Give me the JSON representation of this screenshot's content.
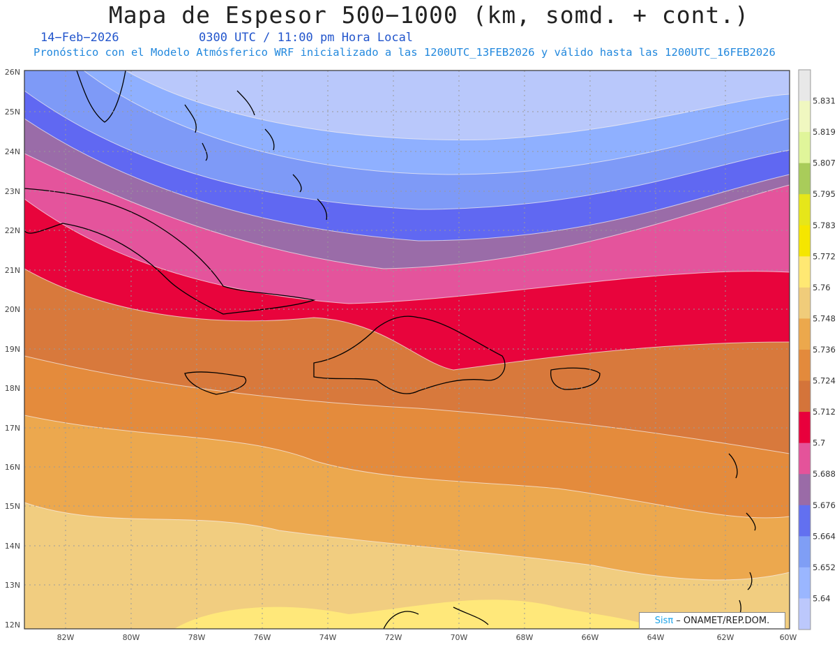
{
  "header": {
    "title": "Mapa de Espesor 500−1000 (km, somd. + cont.)",
    "date": "14−Feb−2026",
    "time": "0300 UTC / 11:00 pm Hora Local",
    "forecast": "Pronóstico con el Modelo Atmósferico WRF inicializado a las 1200UTC_13FEB2026 y válido hasta las  1200UTC_16FEB2026"
  },
  "axes": {
    "lat_labels": [
      "26N",
      "25N",
      "24N",
      "23N",
      "22N",
      "21N",
      "20N",
      "19N",
      "18N",
      "17N",
      "16N",
      "15N",
      "14N",
      "13N",
      "12N"
    ],
    "lon_labels": [
      "82W",
      "80W",
      "78W",
      "76W",
      "74W",
      "72W",
      "70W",
      "68W",
      "66W",
      "64W",
      "62W",
      "60W"
    ]
  },
  "colorbar": {
    "levels": [
      "5.831",
      "5.819",
      "5.807",
      "5.795",
      "5.783",
      "5.772",
      "5.76",
      "5.748",
      "5.736",
      "5.724",
      "5.712",
      "5.7",
      "5.688",
      "5.676",
      "5.664",
      "5.652",
      "5.64"
    ],
    "colors": [
      "#e8e8e8",
      "#f0f7c0",
      "#e0f59a",
      "#a9cc5a",
      "#e6e61a",
      "#f5e600",
      "#ffe873",
      "#f0cc7a",
      "#eca84c",
      "#e38a3c",
      "#d4743a",
      "#e8003c",
      "#e4539a",
      "#9a6ba7",
      "#6270f0",
      "#7f9ef5",
      "#9ab6ff",
      "#bcc8fc"
    ]
  },
  "credit": {
    "brand": "Sisπ",
    "text": "– ONAMET/REP.DOM."
  }
}
